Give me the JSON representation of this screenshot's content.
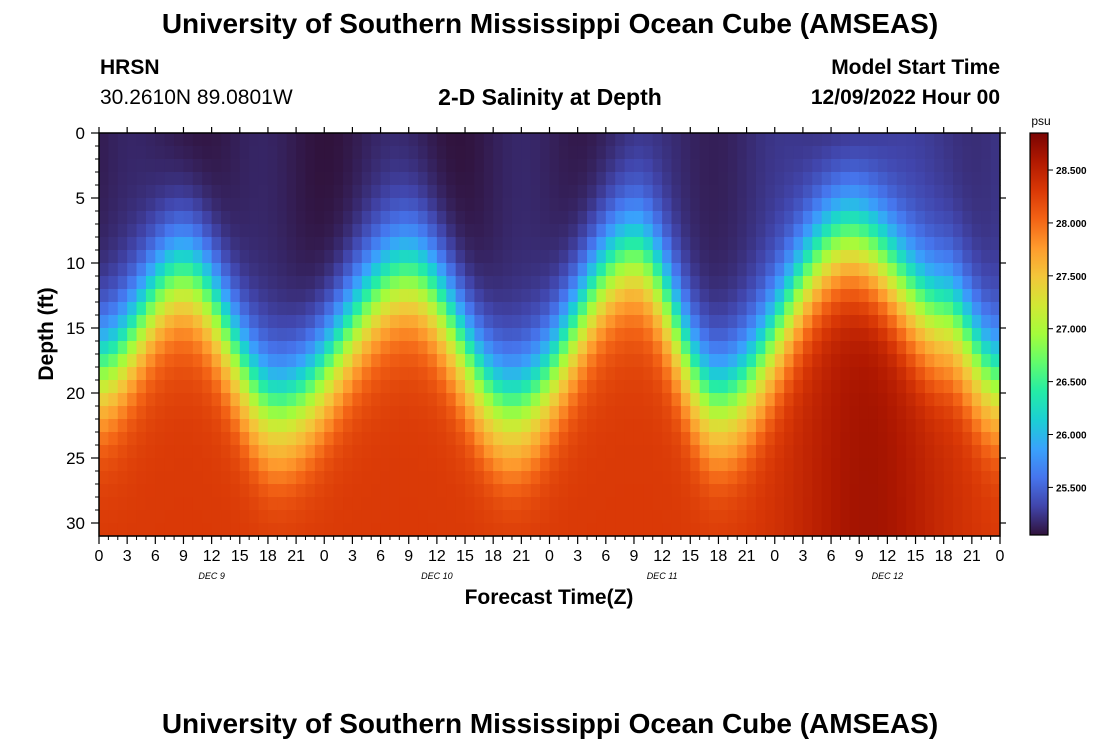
{
  "header": {
    "title": "University of Southern Mississippi Ocean Cube (AMSEAS)",
    "station_id": "HRSN",
    "station_coords": "30.2610N  89.0801W",
    "plot_title": "2-D Salinity at Depth",
    "model_start_label": "Model Start Time",
    "model_start_value": "12/09/2022 Hour 00"
  },
  "footer": {
    "title": "University of Southern Mississippi Ocean Cube (AMSEAS)"
  },
  "colors": {
    "palette": [
      "#30123b",
      "#4145ab",
      "#4675ed",
      "#39a2fc",
      "#1bcfd4",
      "#24eca6",
      "#61fc6c",
      "#a4fc3b",
      "#d1e834",
      "#f3c63a",
      "#fe9b2d",
      "#f36315",
      "#d93806",
      "#b11901",
      "#7a0403"
    ]
  },
  "chart_data": {
    "type": "heatmap",
    "title": "2-D Salinity at Depth",
    "xlabel": "Forecast Time(Z)",
    "ylabel": "Depth (ft)",
    "x_range_hours": [
      0,
      96
    ],
    "y_range_ft": [
      0,
      31
    ],
    "x_tick_labels": [
      "0",
      "3",
      "6",
      "9",
      "12",
      "15",
      "18",
      "21",
      "0",
      "3",
      "6",
      "9",
      "12",
      "15",
      "18",
      "21",
      "0",
      "3",
      "6",
      "9",
      "12",
      "15",
      "18",
      "21",
      "0",
      "3",
      "6",
      "9",
      "12",
      "15",
      "18",
      "21",
      "0"
    ],
    "y_ticks": [
      0,
      5,
      10,
      15,
      20,
      25,
      30
    ],
    "y_tick_labels": [
      "0",
      "5",
      "10",
      "15",
      "20",
      "25",
      "30"
    ],
    "day_labels": [
      {
        "hour": 12,
        "label": "DEC 9"
      },
      {
        "hour": 36,
        "label": "DEC 10"
      },
      {
        "hour": 60,
        "label": "DEC 11"
      },
      {
        "hour": 84,
        "label": "DEC 12"
      }
    ],
    "colorbar": {
      "unit": "psu",
      "range": [
        25.05,
        28.85
      ],
      "ticks": [
        25.5,
        26.0,
        26.5,
        27.0,
        27.5,
        28.0,
        28.5
      ],
      "tick_labels": [
        "25.500",
        "26.000",
        "26.500",
        "27.000",
        "27.500",
        "28.000",
        "28.500"
      ]
    },
    "halocline_depth_ft": [
      {
        "hour": 0,
        "depth": 18
      },
      {
        "hour": 9,
        "depth": 11
      },
      {
        "hour": 19,
        "depth": 21
      },
      {
        "hour": 33,
        "depth": 11
      },
      {
        "hour": 44,
        "depth": 21
      },
      {
        "hour": 57,
        "depth": 9.5
      },
      {
        "hour": 66,
        "depth": 20.5
      },
      {
        "hour": 80,
        "depth": 8
      },
      {
        "hour": 90,
        "depth": 14
      },
      {
        "hour": 96,
        "depth": 19
      }
    ],
    "surface_salinity_psu": 25.1,
    "bottom_salinity_psu": 28.3,
    "max_salinity_psu": 28.85
  }
}
